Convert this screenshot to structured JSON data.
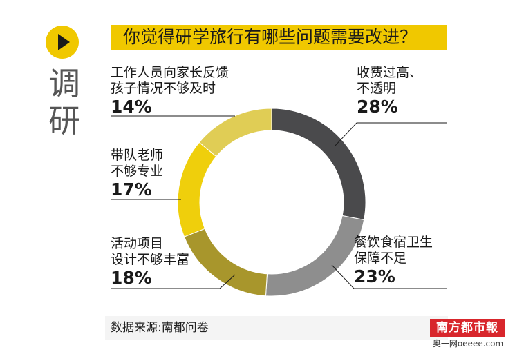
{
  "header": {
    "title": "你觉得研学旅行有哪些问题需要改进？",
    "side_label": [
      "调",
      "研"
    ]
  },
  "footer": {
    "source": "数据来源:南都问卷"
  },
  "logo": {
    "name": "南方都市報",
    "subtext": "奥一网oeeee.com"
  },
  "colors": {
    "accent": "#f0c800",
    "title_bar": "#f0c800"
  },
  "chart_data": {
    "type": "pie",
    "donut": true,
    "title": "你觉得研学旅行有哪些问题需要改进？",
    "slices": [
      {
        "label_lines": [
          "收费过高、",
          "不透明"
        ],
        "pct_text": "28%",
        "value": 28,
        "color": "#4a4a4c"
      },
      {
        "label_lines": [
          "餐饮食宿卫生",
          "保障不足"
        ],
        "pct_text": "23%",
        "value": 23,
        "color": "#8e8e8e"
      },
      {
        "label_lines": [
          "活动项目",
          "设计不够丰富"
        ],
        "pct_text": "18%",
        "value": 18,
        "color": "#a8962c"
      },
      {
        "label_lines": [
          "带队老师",
          "不够专业"
        ],
        "pct_text": "17%",
        "value": 17,
        "color": "#efcf0c"
      },
      {
        "label_lines": [
          "工作人员向家长反馈",
          "孩子情况不够及时"
        ],
        "pct_text": "14%",
        "value": 14,
        "color": "#e0cd55"
      }
    ],
    "legend": "none",
    "grid": false
  }
}
